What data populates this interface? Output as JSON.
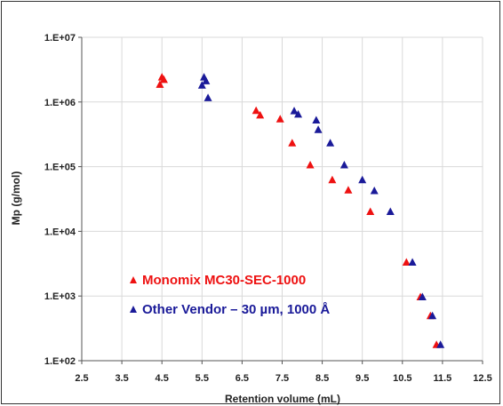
{
  "chart_data": {
    "type": "scatter",
    "xlabel": "Retention volume (mL)",
    "ylabel": "Mp (g/mol)",
    "xlim": [
      2.5,
      12.5
    ],
    "ylim": [
      100,
      10000000
    ],
    "y_scale": "log",
    "x_ticks": [
      "2.5",
      "3.5",
      "4.5",
      "5.5",
      "6.5",
      "7.5",
      "8.5",
      "9.5",
      "10.5",
      "11.5",
      "12.5"
    ],
    "y_ticks": [
      "1.E+02",
      "1.E+03",
      "1.E+04",
      "1.E+05",
      "1.E+06",
      "1.E+07"
    ],
    "grid": true,
    "legend_position": "lower-left",
    "series": [
      {
        "name": "Monomix MC30-SEC-1000",
        "color": "#ee1111",
        "marker": "triangle",
        "points": [
          [
            4.45,
            1850000
          ],
          [
            4.5,
            2400000
          ],
          [
            4.55,
            2200000
          ],
          [
            6.85,
            730000
          ],
          [
            6.95,
            620000
          ],
          [
            7.45,
            540000
          ],
          [
            7.75,
            230000
          ],
          [
            8.2,
            105000
          ],
          [
            8.75,
            62000
          ],
          [
            9.15,
            43000
          ],
          [
            9.7,
            20000
          ],
          [
            10.6,
            3300
          ],
          [
            10.95,
            960
          ],
          [
            11.2,
            490
          ],
          [
            11.35,
            175
          ]
        ]
      },
      {
        "name": "Other Vendor – 30 µm, 1000 Å",
        "color": "#1a1a99",
        "marker": "triangle",
        "points": [
          [
            5.5,
            1800000
          ],
          [
            5.55,
            2400000
          ],
          [
            5.6,
            2100000
          ],
          [
            5.65,
            1150000
          ],
          [
            7.8,
            720000
          ],
          [
            7.9,
            640000
          ],
          [
            8.35,
            520000
          ],
          [
            8.4,
            370000
          ],
          [
            8.7,
            230000
          ],
          [
            9.05,
            105000
          ],
          [
            9.5,
            62000
          ],
          [
            9.8,
            42000
          ],
          [
            10.2,
            20000
          ],
          [
            10.75,
            3300
          ],
          [
            11.0,
            960
          ],
          [
            11.25,
            490
          ],
          [
            11.45,
            175
          ]
        ]
      }
    ]
  }
}
